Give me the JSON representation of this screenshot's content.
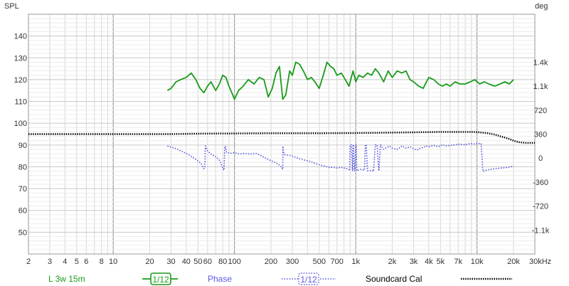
{
  "chart_data": {
    "type": "line",
    "x_scale": "log",
    "x_range_hz": [
      2,
      30000
    ],
    "y_left": {
      "label": "SPL",
      "range": [
        40,
        150
      ],
      "ticks": [
        50,
        60,
        70,
        80,
        90,
        100,
        110,
        120,
        130,
        140
      ]
    },
    "y_right": {
      "label": "deg",
      "range_deg": [
        -1440,
        2160
      ],
      "ticks": [
        {
          "v": -1080,
          "t": "-1.1k"
        },
        {
          "v": -720,
          "t": "-720"
        },
        {
          "v": -360,
          "t": "-360"
        },
        {
          "v": 0,
          "t": "0"
        },
        {
          "v": 360,
          "t": "360"
        },
        {
          "v": 720,
          "t": "720"
        },
        {
          "v": 1080,
          "t": "1.1k"
        },
        {
          "v": 1440,
          "t": "1.4k"
        }
      ]
    },
    "x_ticks": [
      {
        "v": 2,
        "t": "2"
      },
      {
        "v": 3,
        "t": "3"
      },
      {
        "v": 4,
        "t": "4"
      },
      {
        "v": 5,
        "t": "5"
      },
      {
        "v": 6,
        "t": "6"
      },
      {
        "v": 8,
        "t": "8"
      },
      {
        "v": 10,
        "t": "10"
      },
      {
        "v": 20,
        "t": "20"
      },
      {
        "v": 30,
        "t": "30"
      },
      {
        "v": 40,
        "t": "40"
      },
      {
        "v": 50,
        "t": "50"
      },
      {
        "v": 60,
        "t": "60"
      },
      {
        "v": 80,
        "t": "80"
      },
      {
        "v": 100,
        "t": "100"
      },
      {
        "v": 200,
        "t": "200"
      },
      {
        "v": 300,
        "t": "300"
      },
      {
        "v": 500,
        "t": "500"
      },
      {
        "v": 700,
        "t": "700"
      },
      {
        "v": 1000,
        "t": "1k"
      },
      {
        "v": 2000,
        "t": "2k"
      },
      {
        "v": 3000,
        "t": "3k"
      },
      {
        "v": 4000,
        "t": "4k"
      },
      {
        "v": 5000,
        "t": "5k"
      },
      {
        "v": 7000,
        "t": "7k"
      },
      {
        "v": 10000,
        "t": "10k"
      },
      {
        "v": 20000,
        "t": "20k"
      },
      {
        "v": 30000,
        "t": "30kHz"
      }
    ],
    "series": [
      {
        "name": "L 3w 15m",
        "axis": "left",
        "color": "#1a9a1a",
        "style": "solid",
        "smoothing": "1/12",
        "x": [
          28,
          30,
          33,
          36,
          40,
          44,
          48,
          52,
          56,
          60,
          64,
          70,
          75,
          80,
          85,
          90,
          95,
          100,
          108,
          118,
          130,
          145,
          160,
          175,
          190,
          205,
          220,
          235,
          250,
          265,
          285,
          300,
          320,
          345,
          370,
          400,
          430,
          460,
          500,
          540,
          580,
          620,
          660,
          700,
          760,
          820,
          880,
          950,
          1000,
          1060,
          1150,
          1250,
          1350,
          1450,
          1550,
          1700,
          1850,
          2000,
          2200,
          2400,
          2600,
          2800,
          3000,
          3300,
          3600,
          4000,
          4400,
          4800,
          5200,
          5600,
          6000,
          6600,
          7200,
          8000,
          8800,
          9600,
          10500,
          11500,
          12500,
          14000,
          15500,
          17000,
          18500,
          20000
        ],
        "y": [
          115,
          116,
          119,
          120,
          121,
          123,
          120,
          116,
          114,
          117,
          119,
          115,
          118,
          122,
          121,
          117,
          114,
          111,
          115,
          117,
          120,
          118,
          121,
          120,
          112,
          116,
          123,
          126,
          111,
          113,
          124,
          122,
          128,
          127,
          124,
          120,
          121,
          119,
          116,
          122,
          128,
          126,
          125,
          122,
          123,
          120,
          117,
          124,
          119,
          122,
          121,
          123,
          122,
          125,
          123,
          119,
          124,
          121,
          124,
          123,
          124,
          120,
          119,
          117,
          116,
          121,
          120,
          118,
          117,
          118,
          117,
          119,
          118,
          118,
          119,
          120,
          118,
          119,
          118,
          117,
          118,
          119,
          118,
          120
        ]
      },
      {
        "name": "Phase",
        "axis": "right",
        "color": "#5a5ae0",
        "style": "dotted",
        "smoothing": "1/12",
        "x": [
          28,
          32,
          37,
          42,
          48,
          53,
          56,
          57,
          57.5,
          60,
          64,
          70,
          76,
          80,
          82,
          83,
          84,
          86,
          92,
          100,
          110,
          120,
          135,
          150,
          165,
          180,
          200,
          220,
          240,
          250,
          251,
          252,
          260,
          290,
          320,
          360,
          400,
          450,
          500,
          550,
          600,
          650,
          700,
          750,
          800,
          850,
          880,
          890,
          900,
          920,
          940,
          950,
          960,
          970,
          980,
          1000,
          1010,
          1020,
          1050,
          1100,
          1180,
          1200,
          1220,
          1250,
          1300,
          1350,
          1400,
          1450,
          1500,
          1550,
          1600,
          1700,
          1800,
          1900,
          2000,
          2200,
          2400,
          2600,
          2800,
          3000,
          3200,
          3400,
          3600,
          3800,
          4000,
          4400,
          4800,
          5200,
          5600,
          6000,
          6600,
          7200,
          8000,
          8800,
          9600,
          10400,
          10800,
          11200,
          12000,
          14000,
          16000,
          18000,
          20000
        ],
        "y": [
          180,
          150,
          100,
          50,
          -20,
          -80,
          -160,
          -140,
          180,
          110,
          60,
          20,
          -40,
          -150,
          -180,
          150,
          180,
          90,
          70,
          80,
          60,
          70,
          60,
          70,
          40,
          0,
          -40,
          -70,
          -120,
          -170,
          180,
          100,
          50,
          40,
          10,
          -20,
          -40,
          -70,
          -100,
          -120,
          -140,
          -140,
          -150,
          -140,
          -150,
          -160,
          -170,
          -190,
          200,
          200,
          -190,
          200,
          200,
          -190,
          -190,
          200,
          200,
          -190,
          -180,
          -170,
          -180,
          200,
          200,
          -190,
          -190,
          -180,
          -200,
          200,
          200,
          -190,
          200,
          130,
          160,
          180,
          150,
          130,
          180,
          150,
          170,
          140,
          120,
          150,
          160,
          180,
          170,
          190,
          170,
          200,
          180,
          190,
          200,
          210,
          200,
          220,
          210,
          220,
          220,
          -200,
          -180,
          -160,
          -150,
          -140,
          -120
        ]
      },
      {
        "name": "Soundcard Cal",
        "axis": "left",
        "color": "#000000",
        "style": "dotted",
        "x": [
          2,
          5,
          10,
          20,
          30,
          50,
          100,
          200,
          500,
          1000,
          2000,
          3000,
          4000,
          5000,
          6000,
          7000,
          8000,
          9000,
          10000,
          12000,
          14000,
          16000,
          18000,
          20000,
          22000,
          25000,
          30000
        ],
        "y": [
          95.0,
          95.0,
          95.0,
          95.0,
          95.0,
          95.2,
          95.3,
          95.4,
          95.4,
          95.5,
          95.7,
          95.8,
          95.9,
          96.0,
          96.0,
          96.0,
          96.0,
          96.0,
          95.9,
          95.5,
          94.8,
          93.8,
          93.0,
          92.0,
          91.3,
          91.0,
          91.0
        ]
      }
    ],
    "legend": [
      {
        "name": "L 3w 15m",
        "badge": "1/12"
      },
      {
        "name": "Phase",
        "badge": "1/12"
      },
      {
        "name": "Soundcard Cal",
        "badge": ""
      }
    ],
    "grid": true,
    "legend_position": "bottom"
  }
}
